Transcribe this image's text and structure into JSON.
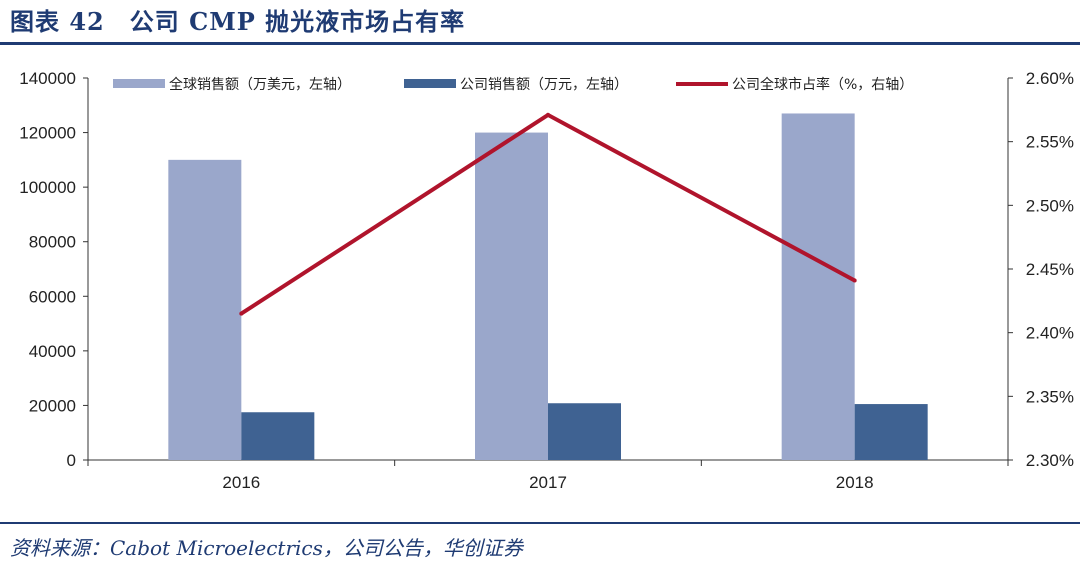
{
  "header": {
    "title": "图表 42　公司 CMP 抛光液市场占有率"
  },
  "footer": {
    "source": "资料来源：Cabot Microelectrics，公司公告，华创证券"
  },
  "colors": {
    "global_sales": "#9aa7cb",
    "company_sales": "#3f6292",
    "market_share": "#b0142c",
    "rule": "#1f3b73"
  },
  "chart_data": {
    "type": "bar",
    "categories": [
      "2016",
      "2017",
      "2018"
    ],
    "series": [
      {
        "name": "全球销售额（万美元，左轴）",
        "type": "bar",
        "axis": "left",
        "values": [
          110000,
          120000,
          127000
        ]
      },
      {
        "name": "公司销售额（万元，左轴）",
        "type": "bar",
        "axis": "left",
        "values": [
          17500,
          20800,
          20500
        ]
      },
      {
        "name": "公司全球市占率（%，右轴）",
        "type": "line",
        "axis": "right",
        "values": [
          2.415,
          2.571,
          2.441
        ]
      }
    ],
    "y_left": {
      "range": [
        0,
        140000
      ],
      "ticks": [
        "0",
        "20000",
        "40000",
        "60000",
        "80000",
        "100000",
        "120000",
        "140000"
      ]
    },
    "y_right": {
      "range": [
        2.3,
        2.6
      ],
      "ticks": [
        "2.30%",
        "2.35%",
        "2.40%",
        "2.45%",
        "2.50%",
        "2.55%",
        "2.60%"
      ]
    },
    "grid": false,
    "legend": "top"
  }
}
